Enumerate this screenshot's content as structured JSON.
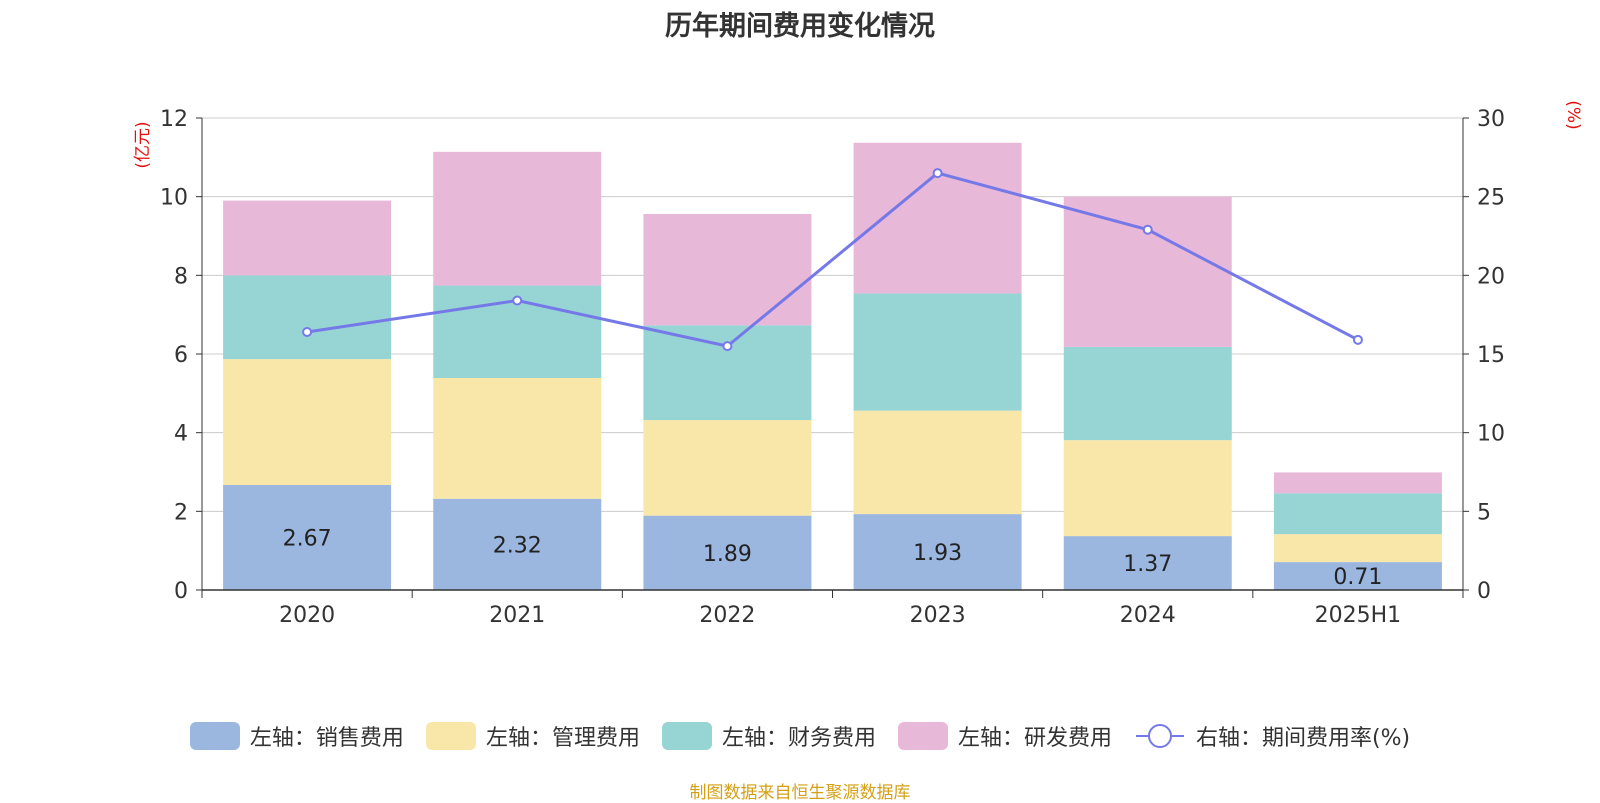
{
  "title": "历年期间费用变化情况",
  "source_note": "制图数据来自恒生聚源数据库",
  "chart_data": {
    "type": "bar",
    "stacked": true,
    "title": "历年期间费用变化情况",
    "categories": [
      "2020",
      "2021",
      "2022",
      "2023",
      "2024",
      "2025H1"
    ],
    "left_axis": {
      "label": "(亿元)",
      "ylim": [
        0,
        12
      ],
      "ticks": [
        "0",
        "2",
        "4",
        "6",
        "8",
        "10",
        "12"
      ]
    },
    "right_axis": {
      "label": "(%)",
      "ylim": [
        0,
        30
      ],
      "ticks": [
        "0",
        "5",
        "10",
        "15",
        "20",
        "25",
        "30"
      ]
    },
    "series": [
      {
        "name": "左轴：销售费用",
        "axis": "left",
        "type": "bar",
        "color": "#9bb7e0",
        "values": [
          2.67,
          2.32,
          1.89,
          1.93,
          1.37,
          0.71
        ],
        "labels": [
          "2.67",
          "2.32",
          "1.89",
          "1.93",
          "1.37",
          "0.71"
        ]
      },
      {
        "name": "左轴：管理费用",
        "axis": "left",
        "type": "bar",
        "color": "#f8e7a9",
        "values": [
          3.2,
          3.07,
          2.43,
          2.63,
          2.44,
          0.71
        ]
      },
      {
        "name": "左轴：财务费用",
        "axis": "left",
        "type": "bar",
        "color": "#97d4d4",
        "values": [
          2.13,
          2.35,
          2.41,
          2.98,
          2.37,
          1.04
        ]
      },
      {
        "name": "左轴：研发费用",
        "axis": "left",
        "type": "bar",
        "color": "#e8b8d9",
        "values": [
          1.9,
          3.4,
          2.83,
          3.83,
          3.82,
          0.53
        ]
      },
      {
        "name": "右轴：期间费用率(%)",
        "axis": "right",
        "type": "line",
        "color": "#7579e8",
        "values": [
          16.4,
          18.4,
          15.5,
          26.5,
          22.9,
          15.9
        ]
      }
    ],
    "grid": true,
    "legend_position": "bottom"
  }
}
